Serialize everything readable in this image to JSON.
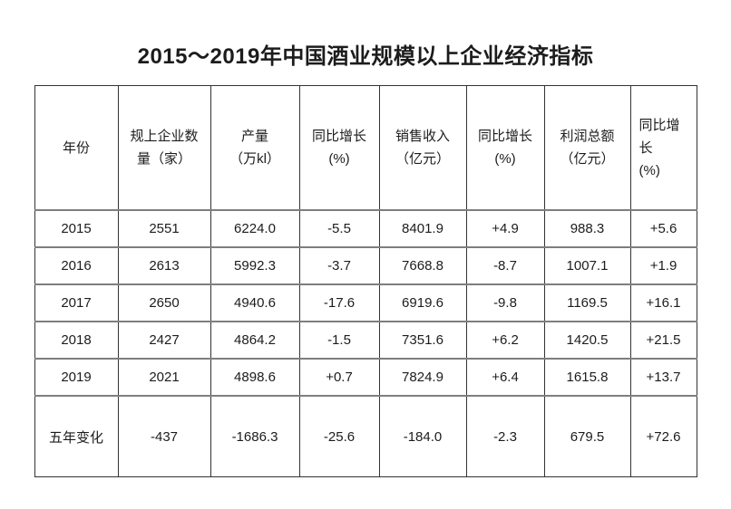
{
  "title": "2015～2019年中国酒业规模以上企业经济指标",
  "table": {
    "headers": [
      {
        "lines": [
          "年份"
        ]
      },
      {
        "lines": [
          "规上企业数",
          "量（家）"
        ]
      },
      {
        "lines": [
          "产量",
          "（万kl）"
        ]
      },
      {
        "lines": [
          "同比增长",
          "(%)"
        ]
      },
      {
        "lines": [
          "销售收入",
          "（亿元）"
        ]
      },
      {
        "lines": [
          "同比增长",
          "(%)"
        ]
      },
      {
        "lines": [
          "利润总额",
          "（亿元）"
        ]
      },
      {
        "lines": [
          "同比增",
          "长",
          "(%)"
        ],
        "align": "left"
      }
    ],
    "rows": [
      [
        "2015",
        "2551",
        "6224.0",
        "-5.5",
        "8401.9",
        "+4.9",
        "988.3",
        "+5.6"
      ],
      [
        "2016",
        "2613",
        "5992.3",
        "-3.7",
        "7668.8",
        "-8.7",
        "1007.1",
        "+1.9"
      ],
      [
        "2017",
        "2650",
        "4940.6",
        "-17.6",
        "6919.6",
        "-9.8",
        "1169.5",
        "+16.1"
      ],
      [
        "2018",
        "2427",
        "4864.2",
        "-1.5",
        "7351.6",
        "+6.2",
        "1420.5",
        "+21.5"
      ],
      [
        "2019",
        "2021",
        "4898.6",
        "+0.7",
        "7824.9",
        "+6.4",
        "1615.8",
        "+13.7"
      ],
      [
        "五年变化",
        "-437",
        "-1686.3",
        "-25.6",
        "-184.0",
        "-2.3",
        "679.5",
        "+72.6"
      ]
    ]
  },
  "colors": {
    "background": "#ffffff",
    "text": "#1c1c1c",
    "border_dark": "#333333",
    "border_light": "#7e7e7e"
  },
  "chart_data": {
    "type": "table",
    "title": "2015～2019年中国酒业规模以上企业经济指标",
    "columns": [
      "年份",
      "规上企业数量（家）",
      "产量（万kl）",
      "同比增长(%)",
      "销售收入（亿元）",
      "同比增长(%)",
      "利润总额（亿元）",
      "同比增长(%)"
    ],
    "rows": [
      [
        "2015",
        2551,
        6224.0,
        -5.5,
        8401.9,
        4.9,
        988.3,
        5.6
      ],
      [
        "2016",
        2613,
        5992.3,
        -3.7,
        7668.8,
        -8.7,
        1007.1,
        1.9
      ],
      [
        "2017",
        2650,
        4940.6,
        -17.6,
        6919.6,
        -9.8,
        1169.5,
        16.1
      ],
      [
        "2018",
        2427,
        4864.2,
        -1.5,
        7351.6,
        6.2,
        1420.5,
        21.5
      ],
      [
        "2019",
        2021,
        4898.6,
        0.7,
        7824.9,
        6.4,
        1615.8,
        13.7
      ],
      [
        "五年变化",
        -437,
        -1686.3,
        -25.6,
        -184.0,
        -2.3,
        679.5,
        72.6
      ]
    ]
  }
}
